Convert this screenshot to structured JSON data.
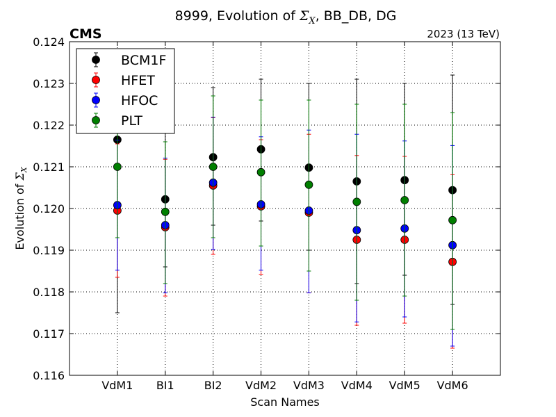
{
  "chart_data": {
    "type": "scatter",
    "title_prefix": "8999, Evolution of ",
    "title_symbol": "Σ",
    "title_subscript": "X",
    "title_suffix": ", BB_DB, DG",
    "experiment_label": "CMS",
    "energy_label": "2023 (13 TeV)",
    "xlabel": "Scan Names",
    "ylabel_prefix": "Evolution of ",
    "ylabel_symbol": "Σ",
    "ylabel_subscript": "X",
    "categories": [
      "VdM1",
      "BI1",
      "BI2",
      "VdM2",
      "VdM3",
      "VdM4",
      "VdM5",
      "VdM6"
    ],
    "ylim": [
      0.116,
      0.124
    ],
    "yticks": [
      "0.116",
      "0.117",
      "0.118",
      "0.119",
      "0.120",
      "0.121",
      "0.122",
      "0.123",
      "0.124"
    ],
    "grid": true,
    "legend_position": "top-left",
    "series": [
      {
        "name": "BCM1F",
        "color": "#000000",
        "values": [
          0.12165,
          0.12022,
          0.12123,
          0.12142,
          0.12098,
          0.12065,
          0.12068,
          0.12044
        ],
        "err_low": [
          0.1175,
          0.1186,
          0.1196,
          0.1197,
          0.119,
          0.1182,
          0.1184,
          0.1177
        ],
        "err_high": [
          0.1226,
          0.1222,
          0.1229,
          0.1231,
          0.123,
          0.1231,
          0.123,
          0.1232
        ]
      },
      {
        "name": "HFET",
        "color": "#ff0000",
        "values": [
          0.11995,
          0.11955,
          0.12055,
          0.12005,
          0.1199,
          0.11925,
          0.11925,
          0.11872
        ],
        "err_low": [
          0.11835,
          0.1179,
          0.1189,
          0.11842,
          0.11798,
          0.1172,
          0.11725,
          0.11665
        ],
        "err_high": [
          0.12155,
          0.12118,
          0.12218,
          0.12165,
          0.12178,
          0.12127,
          0.12125,
          0.12081
        ]
      },
      {
        "name": "HFOC",
        "color": "#0000ff",
        "values": [
          0.12008,
          0.1196,
          0.12062,
          0.1201,
          0.11995,
          0.11948,
          0.11952,
          0.11912
        ],
        "err_low": [
          0.11852,
          0.11798,
          0.11902,
          0.11852,
          0.11798,
          0.11728,
          0.1174,
          0.1167
        ],
        "err_high": [
          0.12164,
          0.12121,
          0.12219,
          0.12172,
          0.12188,
          0.12178,
          0.12162,
          0.12151
        ]
      },
      {
        "name": "PLT",
        "color": "#007f00",
        "values": [
          0.121,
          0.11992,
          0.121,
          0.12087,
          0.12057,
          0.12016,
          0.1202,
          0.11972
        ],
        "err_low": [
          0.1193,
          0.1182,
          0.1193,
          0.1191,
          0.1185,
          0.1178,
          0.1179,
          0.1171
        ],
        "err_high": [
          0.1227,
          0.1216,
          0.1227,
          0.1226,
          0.1226,
          0.1225,
          0.1225,
          0.1223
        ]
      }
    ]
  }
}
